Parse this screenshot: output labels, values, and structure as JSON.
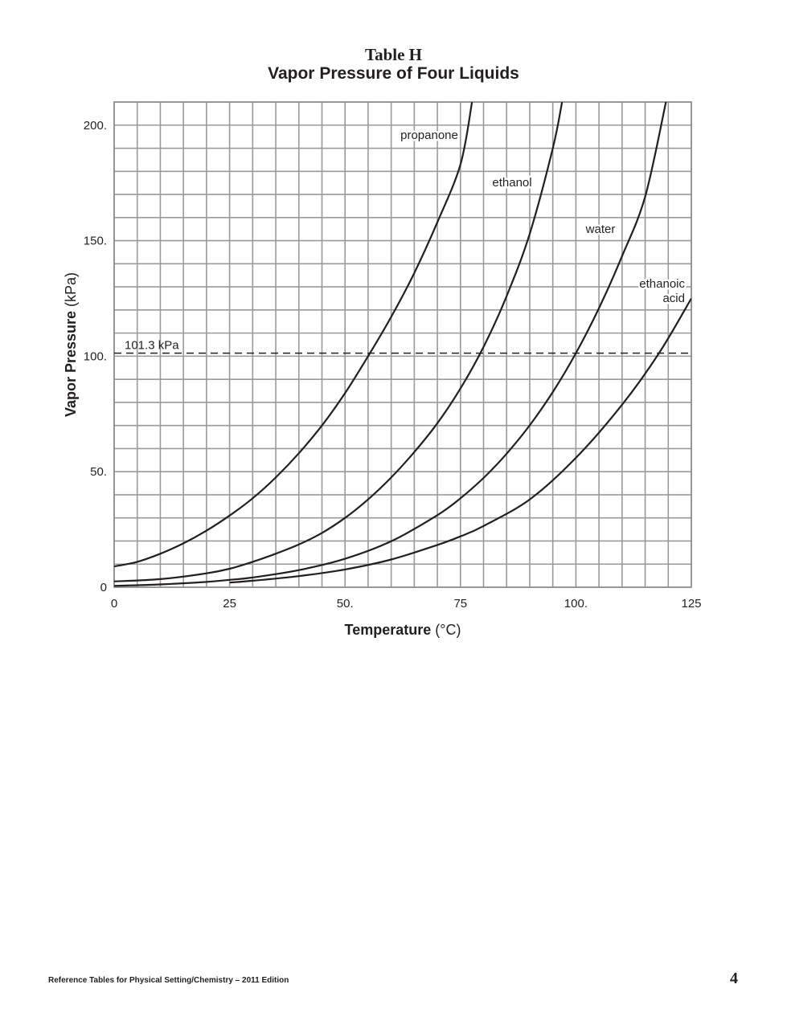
{
  "header": {
    "table_label": "Table H",
    "title": "Vapor Pressure of Four Liquids"
  },
  "chart_data": {
    "type": "line",
    "title": "Vapor Pressure of Four Liquids",
    "xlabel_bold": "Temperature",
    "xlabel_unit": "(°C)",
    "ylabel_bold": "Vapor Pressure",
    "ylabel_unit": "(kPa)",
    "xlim": [
      0,
      125
    ],
    "ylim": [
      0,
      210
    ],
    "x_ticks": [
      {
        "value": 0,
        "label": "0"
      },
      {
        "value": 25,
        "label": "25"
      },
      {
        "value": 50,
        "label": "50."
      },
      {
        "value": 75,
        "label": "75"
      },
      {
        "value": 100,
        "label": "100."
      },
      {
        "value": 125,
        "label": "125"
      }
    ],
    "y_ticks": [
      {
        "value": 0,
        "label": "0"
      },
      {
        "value": 50,
        "label": "50."
      },
      {
        "value": 100,
        "label": "100."
      },
      {
        "value": 150,
        "label": "150."
      },
      {
        "value": 200,
        "label": "200."
      }
    ],
    "grid": true,
    "grid_x_step": 5,
    "grid_y_step": 10,
    "reference_line": {
      "y": 101.3,
      "label": "101.3 kPa",
      "style": "dashed"
    },
    "series": [
      {
        "name": "propanone",
        "label_lines": [
          "propanone"
        ],
        "x": [
          0,
          5,
          10,
          15,
          20,
          25,
          30,
          35,
          40,
          45,
          50,
          55,
          60,
          65,
          70,
          75,
          77.5
        ],
        "y": [
          9,
          11,
          14.5,
          19,
          24.5,
          31,
          38.5,
          47.5,
          58,
          70,
          84,
          100,
          117,
          136,
          158,
          183,
          210
        ]
      },
      {
        "name": "ethanol",
        "label_lines": [
          "ethanol"
        ],
        "x": [
          0,
          10,
          20,
          25,
          30,
          35,
          40,
          45,
          50,
          55,
          60,
          65,
          70,
          75,
          80,
          85,
          90,
          95,
          97
        ],
        "y": [
          2.5,
          3.5,
          6,
          8,
          11,
          14.5,
          18.5,
          23.5,
          30,
          38,
          47.5,
          58.5,
          71,
          86,
          104,
          126,
          153,
          190,
          210
        ]
      },
      {
        "name": "water",
        "label_lines": [
          "water"
        ],
        "x": [
          0,
          10,
          20,
          25,
          30,
          40,
          50,
          60,
          70,
          75,
          80,
          85,
          90,
          95,
          100,
          105,
          110,
          115,
          119.5
        ],
        "y": [
          0.6,
          1.2,
          2.3,
          3.2,
          4.2,
          7.4,
          12.3,
          19.9,
          31.2,
          38.5,
          47.3,
          57.8,
          70.1,
          84.5,
          101.3,
          120.8,
          143.3,
          169.1,
          210
        ]
      },
      {
        "name": "ethanoic acid",
        "label_lines": [
          "ethanoic",
          "acid"
        ],
        "x": [
          25,
          30,
          40,
          50,
          60,
          70,
          75,
          80,
          90,
          100,
          110,
          118,
          125
        ],
        "y": [
          2,
          2.8,
          4.8,
          7.7,
          12,
          18.3,
          22,
          26.5,
          38,
          56,
          79,
          101.3,
          125
        ]
      }
    ]
  },
  "footer": {
    "text": "Reference Tables for Physical Setting/Chemistry – 2011 Edition",
    "page_number": "4"
  }
}
